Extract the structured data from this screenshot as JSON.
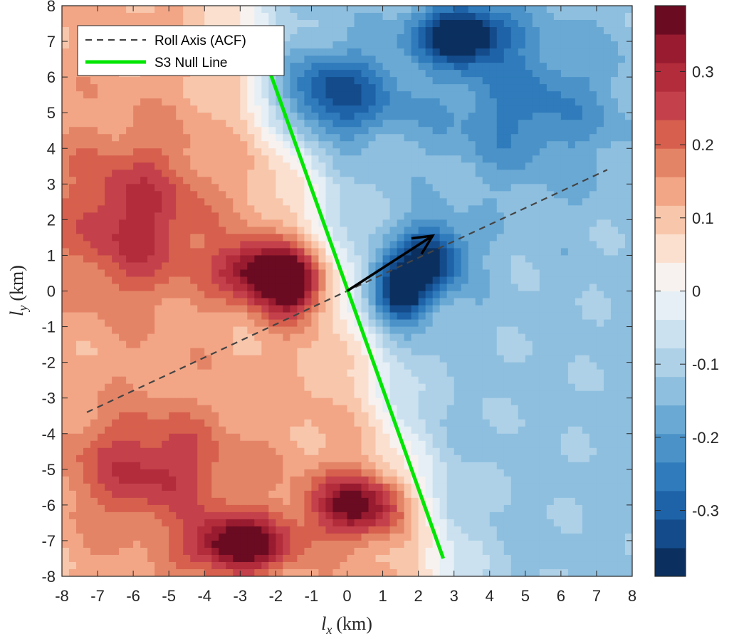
{
  "chart_data": {
    "type": "heatmap",
    "xlabel": "l_x (km)",
    "ylabel": "l_y (km)",
    "xlabel_main": "l",
    "xlabel_sub": "x",
    "ylabel_main": "l",
    "ylabel_sub": "y",
    "axis_unit": "(km)",
    "xlim": [
      -8,
      8
    ],
    "ylim": [
      -8,
      8
    ],
    "xticks": [
      "-8",
      "-7",
      "-6",
      "-5",
      "-4",
      "-3",
      "-2",
      "-1",
      "0",
      "1",
      "2",
      "3",
      "4",
      "5",
      "6",
      "7",
      "8"
    ],
    "yticks": [
      "-8",
      "-7",
      "-6",
      "-5",
      "-4",
      "-3",
      "-2",
      "-1",
      "0",
      "1",
      "2",
      "3",
      "4",
      "5",
      "6",
      "7",
      "8"
    ],
    "colorbar": {
      "range": [
        -0.39,
        0.39
      ],
      "levels": 20,
      "ticks": [
        -0.3,
        -0.2,
        -0.1,
        0,
        0.1,
        0.2,
        0.3
      ],
      "tick_labels": [
        "-0.3",
        "-0.2",
        "-0.1",
        "0",
        "0.1",
        "0.2",
        "0.3"
      ],
      "colormap": [
        "#0b3060",
        "#144b8b",
        "#1e63a8",
        "#2f7bbb",
        "#4a92c8",
        "#6aa9d4",
        "#8ebfdf",
        "#aed1e8",
        "#cbe1ef",
        "#e5eff5",
        "#f7f2ef",
        "#fbe0d0",
        "#f8c6ab",
        "#f2a686",
        "#e48467",
        "#d6604d",
        "#c4414b",
        "#b22c3c",
        "#981b2f",
        "#6b0b22"
      ]
    },
    "field_features": [
      {
        "x": 3.2,
        "y": 7.2,
        "value": -0.37,
        "sx": 1.3,
        "sy": 0.8
      },
      {
        "x": -0.5,
        "y": 5.5,
        "value": -0.27,
        "sx": 1.8,
        "sy": 1.2
      },
      {
        "x": 5.0,
        "y": 5.2,
        "value": -0.15,
        "sx": 2.5,
        "sy": 2.0
      },
      {
        "x": 1.5,
        "y": 0.0,
        "value": -0.37,
        "sx": 0.9,
        "sy": 0.9
      },
      {
        "x": 2.4,
        "y": 1.0,
        "value": -0.28,
        "sx": 1.0,
        "sy": 0.9
      },
      {
        "x": -1.6,
        "y": 0.2,
        "value": 0.37,
        "sx": 0.9,
        "sy": 0.9
      },
      {
        "x": -2.6,
        "y": 0.6,
        "value": 0.28,
        "sx": 1.1,
        "sy": 0.8
      },
      {
        "x": -3.0,
        "y": -7.1,
        "value": 0.37,
        "sx": 1.4,
        "sy": 0.8
      },
      {
        "x": 0.3,
        "y": -6.0,
        "value": 0.33,
        "sx": 1.3,
        "sy": 0.9
      },
      {
        "x": -6.0,
        "y": 2.0,
        "value": 0.2,
        "sx": 2.0,
        "sy": 2.2
      },
      {
        "x": -5.5,
        "y": -5.0,
        "value": 0.19,
        "sx": 2.2,
        "sy": 1.6
      }
    ],
    "series": [
      {
        "name": "Roll Axis (ACF)",
        "style": "dashed",
        "color": "#444444",
        "x": [
          -7.3,
          7.3
        ],
        "y": [
          -3.4,
          3.4
        ]
      },
      {
        "name": "S3 Null Line",
        "style": "solid",
        "color": "#00e600",
        "x": [
          -2.15,
          2.7
        ],
        "y": [
          6.1,
          -7.5
        ]
      }
    ],
    "arrow": {
      "x": [
        0,
        2.4
      ],
      "y": [
        0,
        1.55
      ],
      "color": "#000000"
    },
    "legend": {
      "placement": "top-left",
      "entries": [
        "Roll Axis (ACF)",
        "S3 Null Line"
      ]
    },
    "grid": false
  }
}
